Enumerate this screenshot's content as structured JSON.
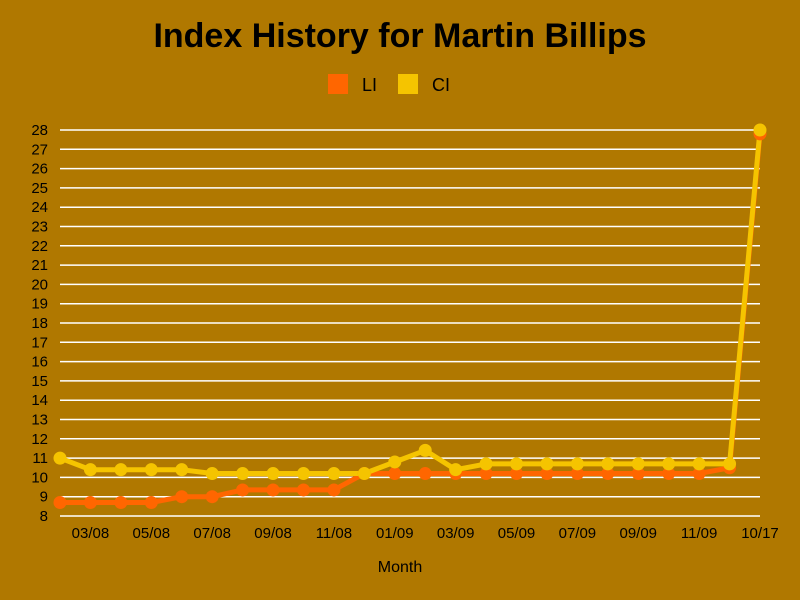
{
  "chart_data": {
    "type": "line",
    "title": "Index History for Martin Billips",
    "xlabel": "Month",
    "ylabel": "",
    "ylim": [
      8,
      28
    ],
    "y_ticks": [
      "8",
      "9",
      "10",
      "11",
      "12",
      "13",
      "14",
      "15",
      "16",
      "17",
      "18",
      "19",
      "20",
      "21",
      "22",
      "23",
      "24",
      "25",
      "26",
      "27",
      "28"
    ],
    "x": [
      "02/08",
      "03/08",
      "04/08",
      "05/08",
      "06/08",
      "07/08",
      "08/08",
      "09/08",
      "10/08",
      "11/08",
      "12/08",
      "01/09",
      "02/09",
      "03/09",
      "04/09",
      "05/09",
      "06/09",
      "07/09",
      "08/09",
      "09/09",
      "10/09",
      "11/09",
      "12/09",
      "10/17"
    ],
    "x_tick_labels": [
      "",
      "03/08",
      "",
      "05/08",
      "",
      "07/08",
      "",
      "09/08",
      "",
      "11/08",
      "",
      "01/09",
      "",
      "03/09",
      "",
      "05/09",
      "",
      "07/09",
      "",
      "09/09",
      "",
      "11/09",
      "",
      "10/17"
    ],
    "grid": true,
    "legend_position": "top-center",
    "series": [
      {
        "name": "LI",
        "color": "#FF6600",
        "values": [
          8.7,
          8.7,
          8.7,
          8.7,
          9.0,
          9.0,
          9.35,
          9.35,
          9.35,
          9.35,
          10.2,
          10.2,
          10.2,
          10.2,
          10.2,
          10.2,
          10.2,
          10.2,
          10.2,
          10.2,
          10.2,
          10.2,
          10.5,
          27.8
        ]
      },
      {
        "name": "CI",
        "color": "#F5C400",
        "values": [
          11.0,
          10.4,
          10.4,
          10.4,
          10.4,
          10.2,
          10.2,
          10.2,
          10.2,
          10.2,
          10.2,
          10.8,
          11.4,
          10.4,
          10.7,
          10.7,
          10.7,
          10.7,
          10.7,
          10.7,
          10.7,
          10.7,
          10.7,
          28.0
        ]
      }
    ]
  },
  "colors": {
    "background": "#B07800",
    "gridline": "#FFFFFF"
  }
}
